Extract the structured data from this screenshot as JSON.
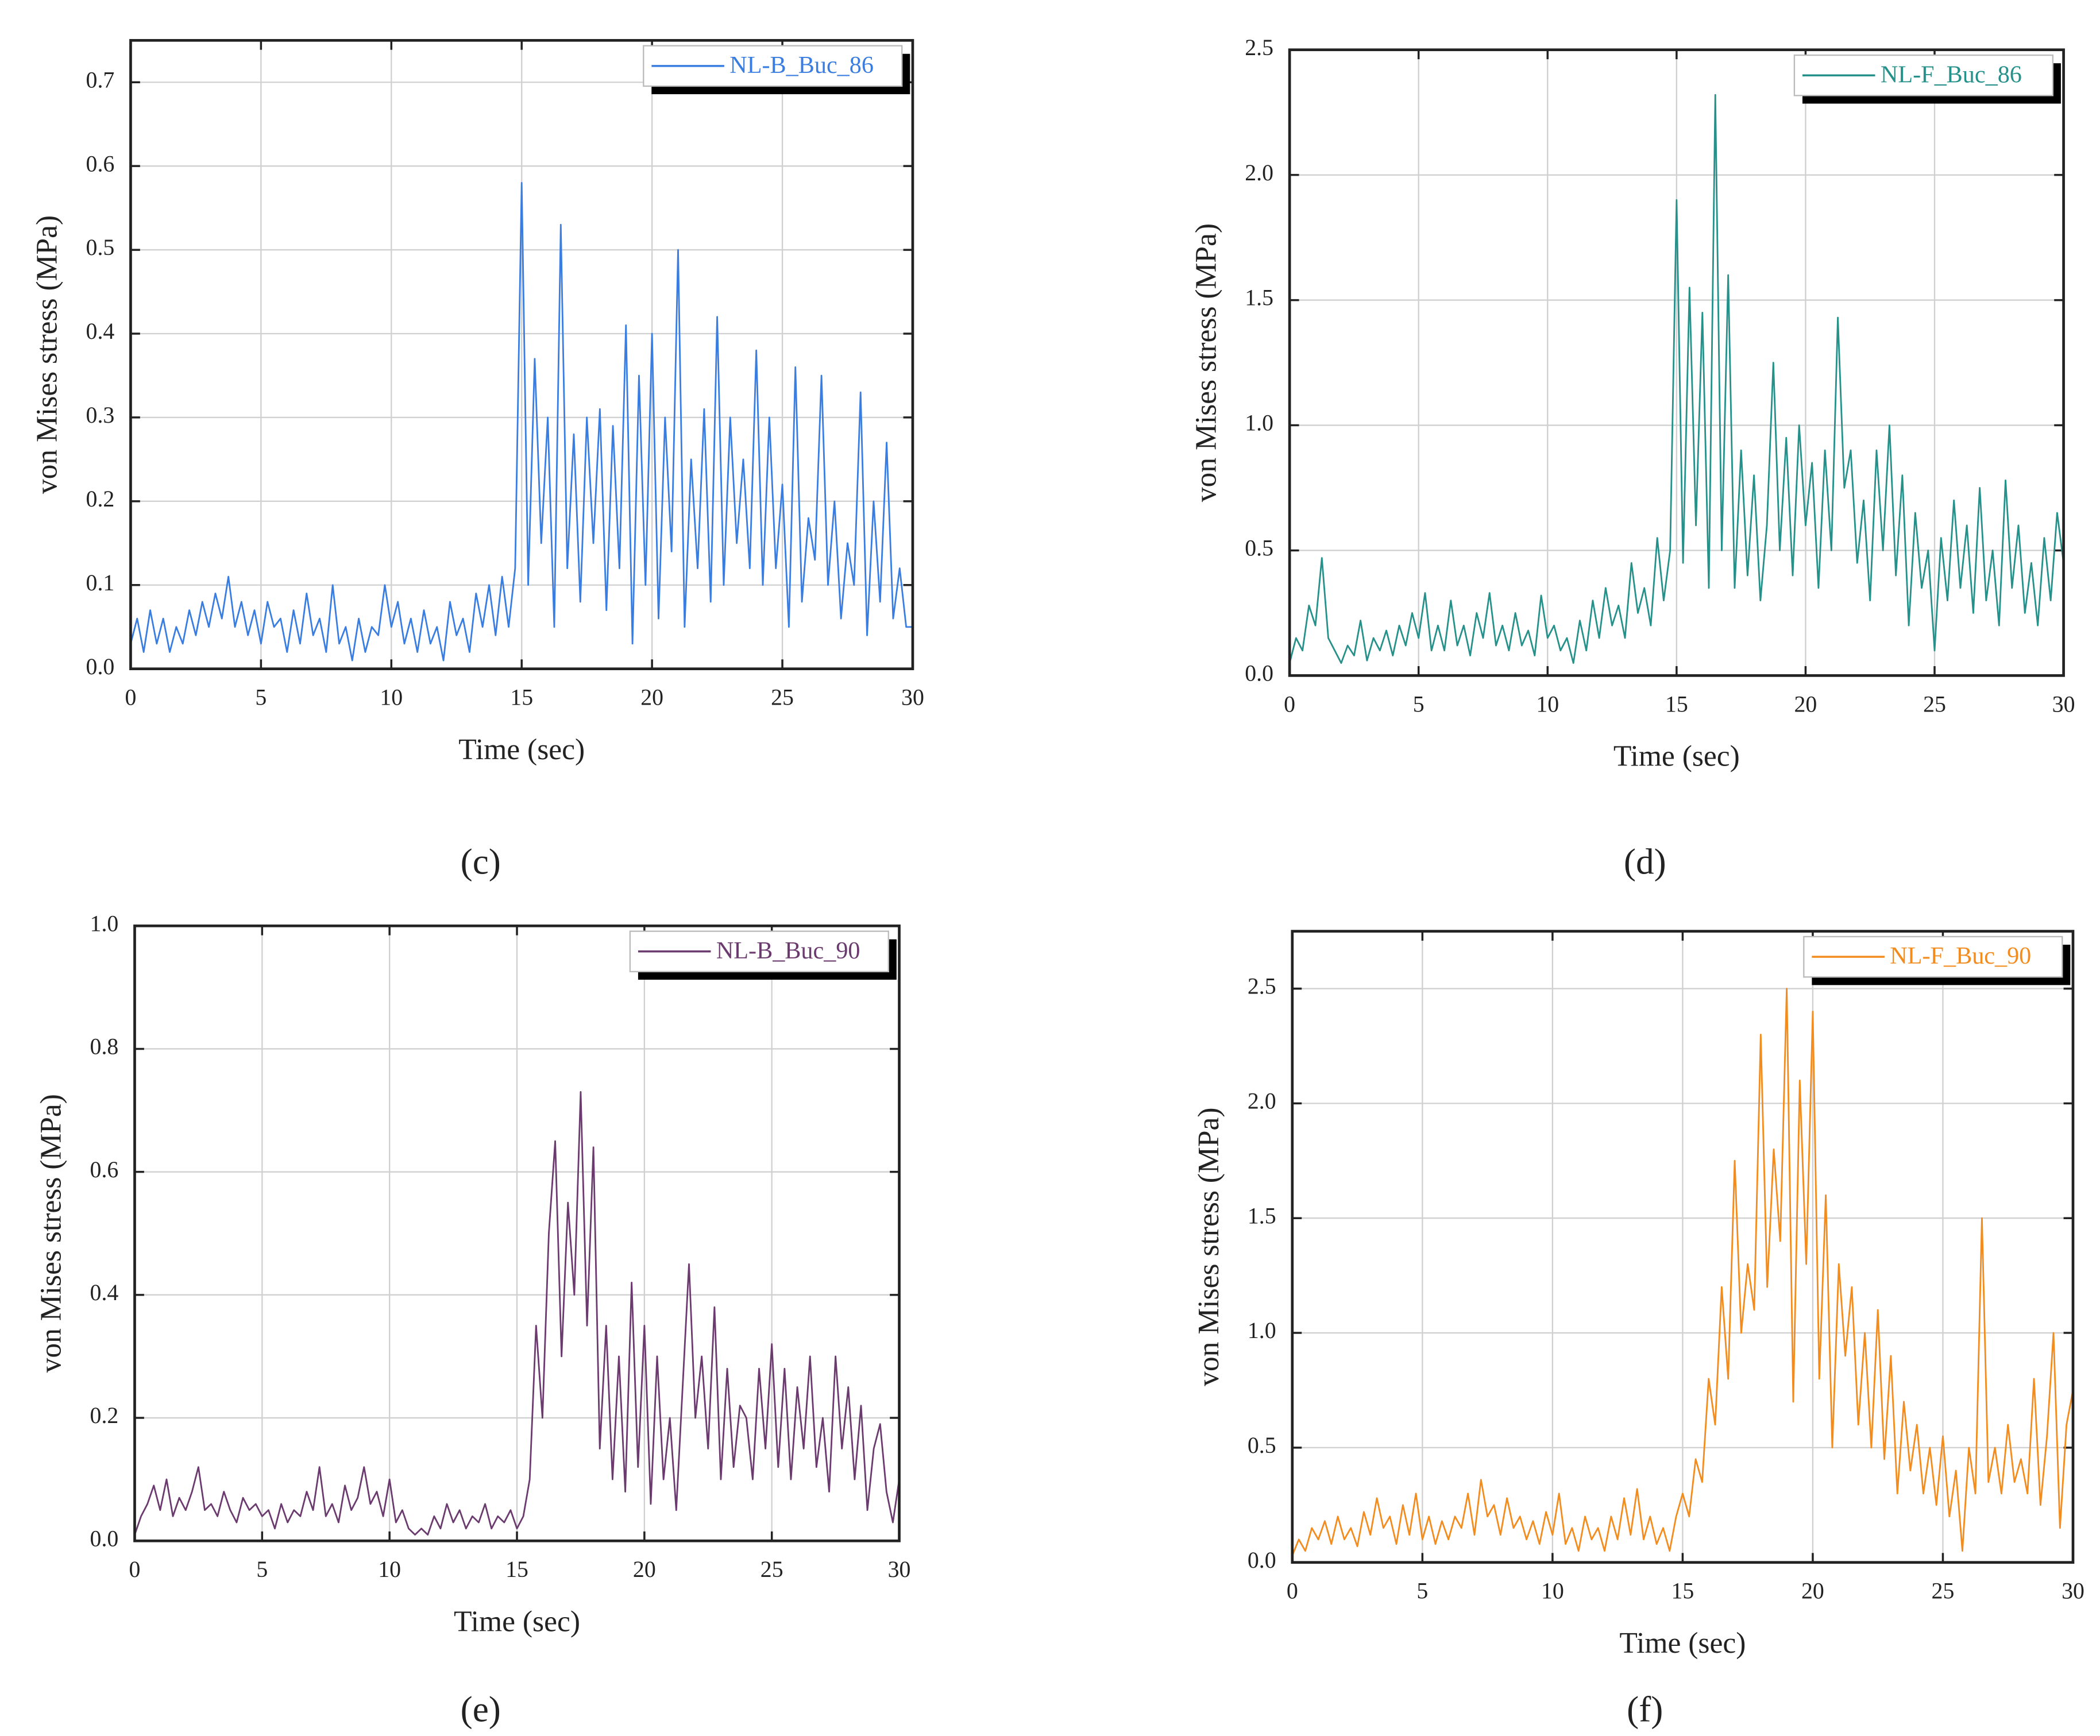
{
  "chart_data": [
    {
      "type": "line",
      "panel": "(c)",
      "xlabel": "Time (sec)",
      "ylabel": "von Mises stress (MPa)",
      "legend": "top-right",
      "grid": true,
      "xlim": [
        0,
        30
      ],
      "xticks": [
        0,
        5,
        10,
        15,
        20,
        25,
        30
      ],
      "ylim": [
        0,
        0.75
      ],
      "yticks": [
        {
          "value": 0,
          "label": "0.0"
        },
        0.1,
        0.2,
        0.3,
        0.4,
        0.5,
        0.6,
        0.7
      ],
      "x": [
        0,
        0.25,
        0.5,
        0.75,
        1,
        1.25,
        1.5,
        1.75,
        2,
        2.25,
        2.5,
        2.75,
        3,
        3.25,
        3.5,
        3.75,
        4,
        4.25,
        4.5,
        4.75,
        5,
        5.25,
        5.5,
        5.75,
        6,
        6.25,
        6.5,
        6.75,
        7,
        7.25,
        7.5,
        7.75,
        8,
        8.25,
        8.5,
        8.75,
        9,
        9.25,
        9.5,
        9.75,
        10,
        10.25,
        10.5,
        10.75,
        11,
        11.25,
        11.5,
        11.75,
        12,
        12.25,
        12.5,
        12.75,
        13,
        13.25,
        13.5,
        13.75,
        14,
        14.25,
        14.5,
        14.75,
        15,
        15.25,
        15.5,
        15.75,
        16,
        16.25,
        16.5,
        16.75,
        17,
        17.25,
        17.5,
        17.75,
        18,
        18.25,
        18.5,
        18.75,
        19,
        19.25,
        19.5,
        19.75,
        20,
        20.25,
        20.5,
        20.75,
        21,
        21.25,
        21.5,
        21.75,
        22,
        22.25,
        22.5,
        22.75,
        23,
        23.25,
        23.5,
        23.75,
        24,
        24.25,
        24.5,
        24.75,
        25,
        25.25,
        25.5,
        25.75,
        26,
        26.25,
        26.5,
        26.75,
        27,
        27.25,
        27.5,
        27.75,
        28,
        28.25,
        28.5,
        28.75,
        29,
        29.25,
        29.5,
        29.75,
        30
      ],
      "series": [
        {
          "name": "NL-B_Buc_86",
          "color": "#3a7de0",
          "values": [
            0.03,
            0.06,
            0.02,
            0.07,
            0.03,
            0.06,
            0.02,
            0.05,
            0.03,
            0.07,
            0.04,
            0.08,
            0.05,
            0.09,
            0.06,
            0.11,
            0.05,
            0.08,
            0.04,
            0.07,
            0.03,
            0.08,
            0.05,
            0.06,
            0.02,
            0.07,
            0.03,
            0.09,
            0.04,
            0.06,
            0.02,
            0.1,
            0.03,
            0.05,
            0.01,
            0.06,
            0.02,
            0.05,
            0.04,
            0.1,
            0.05,
            0.08,
            0.03,
            0.06,
            0.02,
            0.07,
            0.03,
            0.05,
            0.01,
            0.08,
            0.04,
            0.06,
            0.02,
            0.09,
            0.05,
            0.1,
            0.04,
            0.11,
            0.05,
            0.12,
            0.58,
            0.1,
            0.37,
            0.15,
            0.3,
            0.05,
            0.53,
            0.12,
            0.28,
            0.08,
            0.3,
            0.15,
            0.31,
            0.07,
            0.29,
            0.12,
            0.41,
            0.03,
            0.35,
            0.1,
            0.4,
            0.06,
            0.3,
            0.14,
            0.5,
            0.05,
            0.25,
            0.12,
            0.31,
            0.08,
            0.42,
            0.1,
            0.3,
            0.15,
            0.25,
            0.12,
            0.38,
            0.1,
            0.3,
            0.12,
            0.22,
            0.05,
            0.36,
            0.08,
            0.18,
            0.13,
            0.35,
            0.1,
            0.2,
            0.06,
            0.15,
            0.1,
            0.33,
            0.04,
            0.2,
            0.08,
            0.27,
            0.06,
            0.12,
            0.05,
            0.05
          ]
        }
      ]
    },
    {
      "type": "line",
      "panel": "(d)",
      "xlabel": "Time (sec)",
      "ylabel": "von Mises stress (MPa)",
      "legend": "top-right",
      "grid": true,
      "xlim": [
        0,
        30
      ],
      "xticks": [
        0,
        5,
        10,
        15,
        20,
        25,
        30
      ],
      "ylim": [
        0,
        2.5
      ],
      "yticks": [
        {
          "value": 0,
          "label": "0.0"
        },
        0.5,
        {
          "value": 1,
          "label": "1.0"
        },
        1.5,
        {
          "value": 2,
          "label": "2.0"
        },
        2.5
      ],
      "x": [
        0,
        0.25,
        0.5,
        0.75,
        1,
        1.25,
        1.5,
        1.75,
        2,
        2.25,
        2.5,
        2.75,
        3,
        3.25,
        3.5,
        3.75,
        4,
        4.25,
        4.5,
        4.75,
        5,
        5.25,
        5.5,
        5.75,
        6,
        6.25,
        6.5,
        6.75,
        7,
        7.25,
        7.5,
        7.75,
        8,
        8.25,
        8.5,
        8.75,
        9,
        9.25,
        9.5,
        9.75,
        10,
        10.25,
        10.5,
        10.75,
        11,
        11.25,
        11.5,
        11.75,
        12,
        12.25,
        12.5,
        12.75,
        13,
        13.25,
        13.5,
        13.75,
        14,
        14.25,
        14.5,
        14.75,
        15,
        15.25,
        15.5,
        15.75,
        16,
        16.25,
        16.5,
        16.75,
        17,
        17.25,
        17.5,
        17.75,
        18,
        18.25,
        18.5,
        18.75,
        19,
        19.25,
        19.5,
        19.75,
        20,
        20.25,
        20.5,
        20.75,
        21,
        21.25,
        21.5,
        21.75,
        22,
        22.25,
        22.5,
        22.75,
        23,
        23.25,
        23.5,
        23.75,
        24,
        24.25,
        24.5,
        24.75,
        25,
        25.25,
        25.5,
        25.75,
        26,
        26.25,
        26.5,
        26.75,
        27,
        27.25,
        27.5,
        27.75,
        28,
        28.25,
        28.5,
        28.75,
        29,
        29.25,
        29.5,
        29.75,
        30
      ],
      "series": [
        {
          "name": "NL-F_Buc_86",
          "color": "#26918a",
          "values": [
            0.05,
            0.15,
            0.1,
            0.28,
            0.2,
            0.47,
            0.15,
            0.1,
            0.05,
            0.12,
            0.08,
            0.22,
            0.06,
            0.15,
            0.1,
            0.18,
            0.08,
            0.2,
            0.12,
            0.25,
            0.15,
            0.33,
            0.1,
            0.2,
            0.1,
            0.3,
            0.12,
            0.2,
            0.08,
            0.25,
            0.15,
            0.33,
            0.12,
            0.2,
            0.1,
            0.25,
            0.12,
            0.18,
            0.08,
            0.32,
            0.15,
            0.2,
            0.1,
            0.15,
            0.05,
            0.22,
            0.1,
            0.3,
            0.15,
            0.35,
            0.2,
            0.28,
            0.15,
            0.45,
            0.25,
            0.35,
            0.2,
            0.55,
            0.3,
            0.5,
            1.9,
            0.45,
            1.55,
            0.6,
            1.45,
            0.35,
            2.32,
            0.5,
            1.6,
            0.35,
            0.9,
            0.4,
            0.8,
            0.3,
            0.6,
            1.25,
            0.5,
            0.95,
            0.4,
            1.0,
            0.6,
            0.85,
            0.35,
            0.9,
            0.5,
            1.43,
            0.75,
            0.9,
            0.45,
            0.7,
            0.3,
            0.9,
            0.5,
            1.0,
            0.4,
            0.8,
            0.2,
            0.65,
            0.35,
            0.5,
            0.1,
            0.55,
            0.3,
            0.7,
            0.35,
            0.6,
            0.25,
            0.75,
            0.3,
            0.5,
            0.2,
            0.78,
            0.35,
            0.6,
            0.25,
            0.45,
            0.2,
            0.55,
            0.3,
            0.65,
            0.45
          ]
        }
      ]
    },
    {
      "type": "line",
      "panel": "(e)",
      "xlabel": "Time (sec)",
      "ylabel": "von Mises stress (MPa)",
      "legend": "top-right",
      "grid": true,
      "xlim": [
        0,
        30
      ],
      "xticks": [
        0,
        5,
        10,
        15,
        20,
        25,
        30
      ],
      "ylim": [
        0,
        1
      ],
      "yticks": [
        {
          "value": 0,
          "label": "0.0"
        },
        0.2,
        0.4,
        0.6,
        0.8,
        {
          "value": 1,
          "label": "1.0"
        }
      ],
      "x": [
        0,
        0.25,
        0.5,
        0.75,
        1,
        1.25,
        1.5,
        1.75,
        2,
        2.25,
        2.5,
        2.75,
        3,
        3.25,
        3.5,
        3.75,
        4,
        4.25,
        4.5,
        4.75,
        5,
        5.25,
        5.5,
        5.75,
        6,
        6.25,
        6.5,
        6.75,
        7,
        7.25,
        7.5,
        7.75,
        8,
        8.25,
        8.5,
        8.75,
        9,
        9.25,
        9.5,
        9.75,
        10,
        10.25,
        10.5,
        10.75,
        11,
        11.25,
        11.5,
        11.75,
        12,
        12.25,
        12.5,
        12.75,
        13,
        13.25,
        13.5,
        13.75,
        14,
        14.25,
        14.5,
        14.75,
        15,
        15.25,
        15.5,
        15.75,
        16,
        16.25,
        16.5,
        16.75,
        17,
        17.25,
        17.5,
        17.75,
        18,
        18.25,
        18.5,
        18.75,
        19,
        19.25,
        19.5,
        19.75,
        20,
        20.25,
        20.5,
        20.75,
        21,
        21.25,
        21.5,
        21.75,
        22,
        22.25,
        22.5,
        22.75,
        23,
        23.25,
        23.5,
        23.75,
        24,
        24.25,
        24.5,
        24.75,
        25,
        25.25,
        25.5,
        25.75,
        26,
        26.25,
        26.5,
        26.75,
        27,
        27.25,
        27.5,
        27.75,
        28,
        28.25,
        28.5,
        28.75,
        29,
        29.25,
        29.5,
        29.75,
        30
      ],
      "series": [
        {
          "name": "NL-B_Buc_90",
          "color": "#6b3a6e",
          "values": [
            0.01,
            0.04,
            0.06,
            0.09,
            0.05,
            0.1,
            0.04,
            0.07,
            0.05,
            0.08,
            0.12,
            0.05,
            0.06,
            0.04,
            0.08,
            0.05,
            0.03,
            0.07,
            0.05,
            0.06,
            0.04,
            0.05,
            0.02,
            0.06,
            0.03,
            0.05,
            0.04,
            0.08,
            0.05,
            0.12,
            0.04,
            0.06,
            0.03,
            0.09,
            0.05,
            0.07,
            0.12,
            0.06,
            0.08,
            0.04,
            0.1,
            0.03,
            0.05,
            0.02,
            0.01,
            0.02,
            0.01,
            0.04,
            0.02,
            0.06,
            0.03,
            0.05,
            0.02,
            0.04,
            0.03,
            0.06,
            0.02,
            0.04,
            0.03,
            0.05,
            0.02,
            0.04,
            0.1,
            0.35,
            0.2,
            0.5,
            0.65,
            0.3,
            0.55,
            0.4,
            0.73,
            0.35,
            0.64,
            0.15,
            0.35,
            0.1,
            0.3,
            0.08,
            0.42,
            0.12,
            0.35,
            0.06,
            0.3,
            0.1,
            0.2,
            0.05,
            0.25,
            0.45,
            0.2,
            0.3,
            0.15,
            0.38,
            0.1,
            0.28,
            0.12,
            0.22,
            0.2,
            0.1,
            0.28,
            0.15,
            0.32,
            0.12,
            0.28,
            0.1,
            0.25,
            0.15,
            0.3,
            0.12,
            0.2,
            0.08,
            0.3,
            0.15,
            0.25,
            0.1,
            0.22,
            0.05,
            0.15,
            0.19,
            0.08,
            0.03,
            0.1
          ]
        }
      ]
    },
    {
      "type": "line",
      "panel": "(f)",
      "xlabel": "Time (sec)",
      "ylabel": "von Mises stress (MPa)",
      "legend": "top-right",
      "grid": true,
      "xlim": [
        0,
        30
      ],
      "xticks": [
        0,
        5,
        10,
        15,
        20,
        25,
        30
      ],
      "ylim": [
        0,
        2.75
      ],
      "yticks": [
        {
          "value": 0,
          "label": "0.0"
        },
        0.5,
        {
          "value": 1,
          "label": "1.0"
        },
        1.5,
        {
          "value": 2,
          "label": "2.0"
        },
        2.5
      ],
      "x": [
        0,
        0.25,
        0.5,
        0.75,
        1,
        1.25,
        1.5,
        1.75,
        2,
        2.25,
        2.5,
        2.75,
        3,
        3.25,
        3.5,
        3.75,
        4,
        4.25,
        4.5,
        4.75,
        5,
        5.25,
        5.5,
        5.75,
        6,
        6.25,
        6.5,
        6.75,
        7,
        7.25,
        7.5,
        7.75,
        8,
        8.25,
        8.5,
        8.75,
        9,
        9.25,
        9.5,
        9.75,
        10,
        10.25,
        10.5,
        10.75,
        11,
        11.25,
        11.5,
        11.75,
        12,
        12.25,
        12.5,
        12.75,
        13,
        13.25,
        13.5,
        13.75,
        14,
        14.25,
        14.5,
        14.75,
        15,
        15.25,
        15.5,
        15.75,
        16,
        16.25,
        16.5,
        16.75,
        17,
        17.25,
        17.5,
        17.75,
        18,
        18.25,
        18.5,
        18.75,
        19,
        19.25,
        19.5,
        19.75,
        20,
        20.25,
        20.5,
        20.75,
        21,
        21.25,
        21.5,
        21.75,
        22,
        22.25,
        22.5,
        22.75,
        23,
        23.25,
        23.5,
        23.75,
        24,
        24.25,
        24.5,
        24.75,
        25,
        25.25,
        25.5,
        25.75,
        26,
        26.25,
        26.5,
        26.75,
        27,
        27.25,
        27.5,
        27.75,
        28,
        28.25,
        28.5,
        28.75,
        29,
        29.25,
        29.5,
        29.75,
        30
      ],
      "series": [
        {
          "name": "NL-F_Buc_90",
          "color": "#f28c1e",
          "values": [
            0.03,
            0.1,
            0.05,
            0.15,
            0.1,
            0.18,
            0.08,
            0.2,
            0.1,
            0.15,
            0.07,
            0.22,
            0.12,
            0.28,
            0.15,
            0.2,
            0.08,
            0.25,
            0.12,
            0.3,
            0.1,
            0.2,
            0.08,
            0.18,
            0.1,
            0.2,
            0.15,
            0.3,
            0.12,
            0.36,
            0.2,
            0.25,
            0.12,
            0.28,
            0.15,
            0.2,
            0.1,
            0.18,
            0.08,
            0.22,
            0.12,
            0.3,
            0.08,
            0.15,
            0.05,
            0.2,
            0.1,
            0.15,
            0.05,
            0.2,
            0.1,
            0.28,
            0.12,
            0.32,
            0.1,
            0.2,
            0.08,
            0.15,
            0.05,
            0.2,
            0.3,
            0.2,
            0.45,
            0.35,
            0.8,
            0.6,
            1.2,
            0.8,
            1.75,
            1.0,
            1.3,
            1.1,
            2.3,
            1.2,
            1.8,
            1.4,
            2.5,
            0.7,
            2.1,
            1.3,
            2.4,
            0.8,
            1.6,
            0.5,
            1.3,
            0.9,
            1.2,
            0.6,
            1.0,
            0.5,
            1.1,
            0.45,
            0.9,
            0.3,
            0.7,
            0.4,
            0.6,
            0.3,
            0.5,
            0.25,
            0.55,
            0.2,
            0.4,
            0.05,
            0.5,
            0.3,
            1.5,
            0.35,
            0.5,
            0.3,
            0.6,
            0.35,
            0.45,
            0.3,
            0.8,
            0.25,
            0.55,
            1.0,
            0.15,
            0.6,
            0.75
          ]
        }
      ]
    }
  ]
}
